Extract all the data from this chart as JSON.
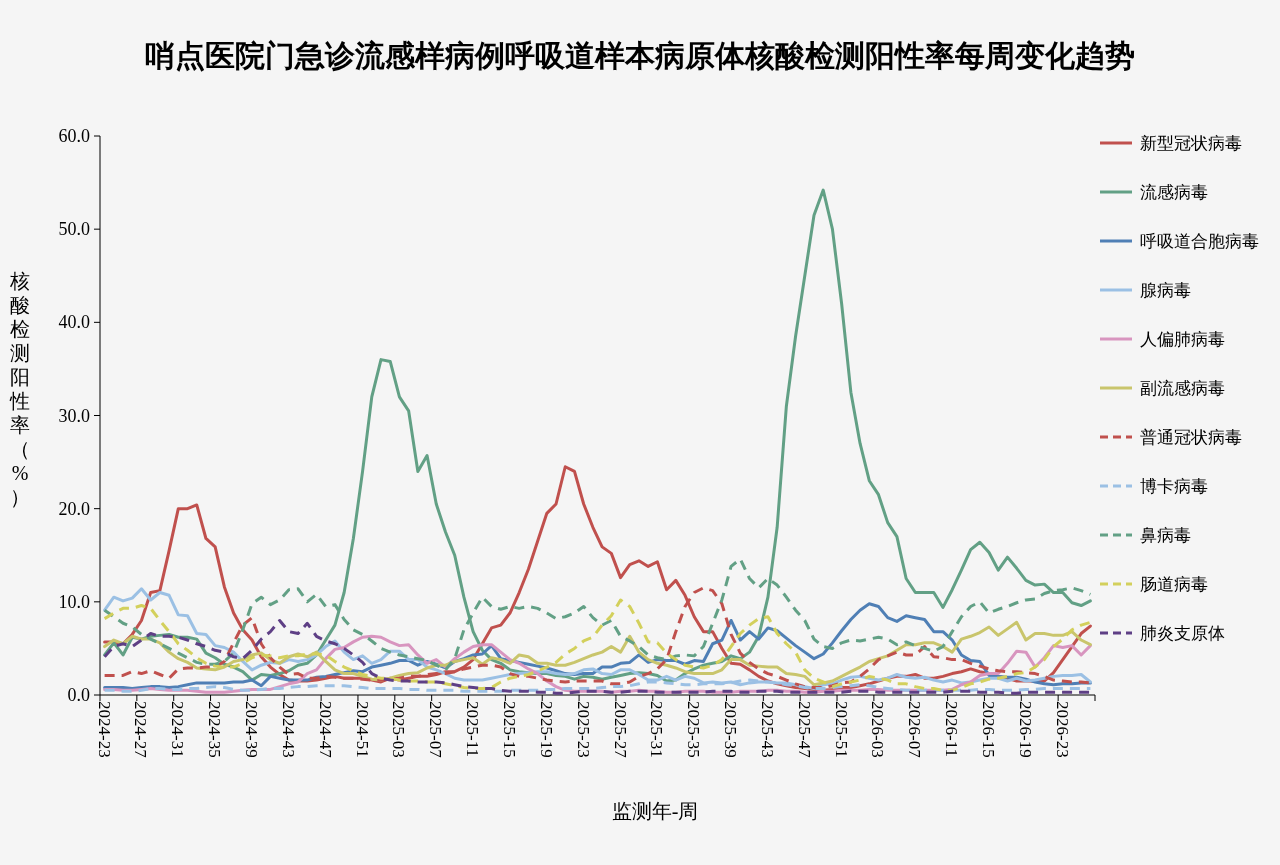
{
  "chart_data": {
    "type": "line",
    "title": "哨点医院门急诊流感样病例呼吸道样本病原体核酸检测阳性率每周变化趋势",
    "xlabel": "监测年-周",
    "ylabel": "核酸检测阳性率（%）",
    "categories": [
      "2024-23",
      null,
      null,
      null,
      "2024-27",
      null,
      null,
      null,
      "2024-31",
      null,
      null,
      null,
      "2024-35",
      null,
      null,
      null,
      "2024-39",
      null,
      null,
      null,
      "2024-43",
      null,
      null,
      null,
      "2024-47",
      null,
      null,
      null,
      "2024-51",
      null,
      null,
      null,
      "2025-03",
      null,
      null,
      null,
      "2025-07",
      null,
      null,
      null,
      "2025-11",
      null,
      null,
      null,
      "2025-15",
      null,
      null,
      null,
      "2025-19",
      null,
      null,
      null,
      "2025-23",
      null,
      null,
      null,
      "2025-27",
      null,
      null,
      null,
      "2025-31",
      null,
      null,
      null,
      "2025-35",
      null,
      null,
      null,
      "2025-39",
      null,
      null,
      null,
      "2025-43",
      null,
      null,
      null,
      "2025-47",
      null,
      null,
      null,
      "2025-51",
      null,
      null,
      null,
      "2026-03",
      null,
      null,
      null,
      "2026-07",
      null,
      null,
      null,
      "2026-11",
      null,
      null,
      null,
      "2026-15",
      null,
      null,
      null,
      "2026-19",
      null,
      null,
      null,
      "2026-23",
      null,
      null,
      null
    ],
    "series": [
      {
        "name": "新型冠状病毒",
        "color": "#c0504d",
        "line_style": "solid",
        "values": [
          5.7,
          5.7,
          5.5,
          6.5,
          8.0,
          11.0,
          11.2,
          15.5,
          20.0,
          20.0,
          20.4,
          16.8,
          15.9,
          11.6,
          8.8,
          7.0,
          5.9,
          4.1,
          3.0,
          2.2,
          1.6,
          1.5,
          1.5,
          1.6,
          1.8,
          2.0,
          1.8,
          1.8,
          1.8,
          1.6,
          1.4,
          1.8,
          1.6,
          1.8,
          2.0,
          2.0,
          2.2,
          2.5,
          2.5,
          3.0,
          3.8,
          5.5,
          7.2,
          7.5,
          8.8,
          11.0,
          13.5,
          16.5,
          19.5,
          20.5,
          24.5,
          24.0,
          20.5,
          18.0,
          15.9,
          15.2,
          12.6,
          14.0,
          14.4,
          13.8,
          14.3,
          11.3,
          12.3,
          10.7,
          8.4,
          6.8,
          6.8,
          5.0,
          3.4,
          3.3,
          2.7,
          2.0,
          1.5,
          1.2,
          1.0,
          0.8,
          0.7,
          0.6,
          0.5,
          0.6,
          0.8,
          0.8,
          1.0,
          1.2,
          1.5,
          1.8,
          2.0,
          2.0,
          2.2,
          1.8,
          1.8,
          2.0,
          2.3,
          2.5,
          2.8,
          2.5,
          2.3,
          2.0,
          1.8,
          1.5,
          1.5,
          1.5,
          1.5,
          2.4,
          3.8,
          5.2,
          6.6,
          7.4
        ]
      },
      {
        "name": "流感病毒",
        "color": "#62a085",
        "line_style": "solid",
        "values": [
          4.3,
          5.6,
          4.3,
          6.2,
          6.0,
          6.3,
          6.4,
          6.5,
          6.2,
          6.2,
          6.0,
          4.5,
          4.0,
          3.3,
          3.0,
          2.5,
          1.6,
          2.2,
          2.1,
          2.3,
          2.6,
          3.2,
          3.4,
          4.3,
          5.9,
          7.5,
          11.0,
          16.8,
          24.0,
          32.0,
          36.0,
          35.8,
          32.0,
          30.5,
          24.0,
          25.7,
          20.5,
          17.5,
          15.0,
          10.5,
          6.8,
          4.8,
          3.8,
          3.4,
          2.7,
          2.5,
          2.4,
          2.3,
          2.3,
          2.1,
          2.0,
          1.7,
          2.0,
          1.9,
          1.7,
          1.9,
          2.1,
          2.3,
          2.4,
          2.3,
          2.1,
          1.5,
          1.6,
          2.3,
          2.8,
          3.2,
          3.4,
          3.6,
          4.2,
          3.9,
          4.6,
          6.3,
          10.5,
          18.0,
          31.0,
          38.5,
          45.0,
          51.5,
          54.2,
          50.0,
          42.0,
          32.5,
          27.0,
          23.0,
          21.5,
          18.5,
          17.0,
          12.5,
          11.0,
          11.0,
          11.0,
          9.4,
          11.3,
          13.4,
          15.6,
          16.4,
          15.3,
          13.4,
          14.8,
          13.6,
          12.3,
          11.8,
          11.9,
          11.0,
          11.0,
          9.9,
          9.6,
          10.1
        ]
      },
      {
        "name": "呼吸道合胞病毒",
        "color": "#4f7fb5",
        "line_style": "solid",
        "values": [
          0.8,
          0.8,
          0.8,
          0.7,
          0.8,
          0.9,
          0.9,
          0.8,
          0.9,
          1.1,
          1.3,
          1.3,
          1.3,
          1.3,
          1.4,
          1.4,
          1.6,
          1.0,
          2.0,
          1.8,
          1.6,
          1.6,
          1.6,
          1.9,
          2.0,
          2.2,
          2.4,
          2.6,
          2.5,
          3.0,
          3.2,
          3.4,
          3.7,
          3.7,
          3.2,
          3.6,
          3.3,
          2.9,
          3.6,
          3.9,
          4.3,
          4.4,
          5.3,
          3.9,
          3.7,
          3.5,
          3.3,
          3.1,
          2.9,
          2.6,
          2.3,
          2.2,
          2.3,
          2.3,
          3.0,
          3.0,
          3.4,
          3.5,
          4.3,
          3.5,
          3.8,
          3.7,
          3.7,
          3.3,
          3.7,
          3.6,
          5.5,
          5.9,
          8.0,
          5.9,
          6.8,
          6.0,
          7.2,
          6.9,
          6.1,
          5.3,
          4.6,
          3.9,
          4.4,
          5.6,
          6.9,
          8.1,
          9.1,
          9.8,
          9.5,
          8.3,
          7.9,
          8.5,
          8.3,
          8.1,
          6.8,
          6.8,
          5.9,
          4.3,
          3.7,
          3.6,
          2.1,
          2.0,
          1.9,
          1.9,
          1.7,
          1.4,
          1.2,
          1.1,
          1.2,
          1.2,
          1.3,
          1.3
        ]
      },
      {
        "name": "腺病毒",
        "color": "#9bc0e4",
        "line_style": "solid",
        "values": [
          9.1,
          10.5,
          10.1,
          10.4,
          11.4,
          10.2,
          11.0,
          10.7,
          8.6,
          8.5,
          6.6,
          6.5,
          5.3,
          5.1,
          4.6,
          3.6,
          2.7,
          3.2,
          3.5,
          3.4,
          3.8,
          3.6,
          3.8,
          4.3,
          5.2,
          5.8,
          4.6,
          3.8,
          4.2,
          3.4,
          3.8,
          4.7,
          4.7,
          3.8,
          3.8,
          3.0,
          2.7,
          2.3,
          1.8,
          1.6,
          1.6,
          1.6,
          1.8,
          2.0,
          2.2,
          2.3,
          2.4,
          2.5,
          2.5,
          2.3,
          2.2,
          2.3,
          2.7,
          2.8,
          2.3,
          2.2,
          2.7,
          2.7,
          2.2,
          1.6,
          1.6,
          2.0,
          1.6,
          2.0,
          1.8,
          1.3,
          1.4,
          1.3,
          1.4,
          1.1,
          1.3,
          1.4,
          1.4,
          1.3,
          1.3,
          1.1,
          0.9,
          0.7,
          1.1,
          1.2,
          1.6,
          1.9,
          2.0,
          1.8,
          1.6,
          1.8,
          2.2,
          1.9,
          1.8,
          1.9,
          1.6,
          1.4,
          1.6,
          1.3,
          1.4,
          1.6,
          1.8,
          1.8,
          1.5,
          1.8,
          1.5,
          1.6,
          1.8,
          2.0,
          2.1,
          2.1,
          2.2,
          1.4
        ]
      },
      {
        "name": "人偏肺病毒",
        "color": "#d895bf",
        "line_style": "solid",
        "values": [
          0.6,
          0.6,
          0.5,
          0.5,
          0.6,
          0.7,
          0.6,
          0.5,
          0.5,
          0.5,
          0.4,
          0.3,
          0.3,
          0.3,
          0.4,
          0.5,
          0.6,
          0.6,
          0.6,
          0.9,
          1.2,
          1.4,
          2.3,
          2.7,
          3.9,
          4.9,
          5.1,
          5.7,
          6.2,
          6.3,
          6.2,
          5.7,
          5.3,
          5.4,
          4.3,
          3.4,
          3.8,
          3.0,
          3.9,
          4.6,
          5.2,
          5.4,
          5.4,
          4.6,
          3.8,
          3.4,
          2.8,
          2.3,
          1.5,
          0.9,
          0.5,
          0.4,
          0.4,
          0.4,
          0.4,
          0.3,
          0.4,
          0.4,
          0.5,
          0.4,
          0.4,
          0.3,
          0.3,
          0.4,
          0.4,
          0.4,
          0.3,
          0.3,
          0.3,
          0.4,
          0.4,
          0.4,
          0.5,
          0.5,
          0.4,
          0.4,
          0.3,
          0.3,
          0.4,
          0.4,
          0.5,
          0.5,
          0.5,
          0.6,
          0.6,
          0.5,
          0.5,
          0.5,
          0.5,
          0.5,
          0.5,
          0.5,
          0.6,
          1.1,
          1.4,
          2.1,
          2.3,
          2.3,
          3.4,
          4.7,
          4.6,
          3.0,
          4.0,
          5.3,
          5.1,
          5.3,
          4.3,
          5.3
        ]
      },
      {
        "name": "副流感病毒",
        "color": "#c9c56c",
        "line_style": "solid",
        "values": [
          5.2,
          5.9,
          5.5,
          6.3,
          6.0,
          6.0,
          5.6,
          4.6,
          3.9,
          3.5,
          2.9,
          2.8,
          2.7,
          3.0,
          3.6,
          3.8,
          4.3,
          4.5,
          3.8,
          3.4,
          4.1,
          4.4,
          4.1,
          4.6,
          3.6,
          2.7,
          2.3,
          2.3,
          2.0,
          1.7,
          1.6,
          1.8,
          2.1,
          2.3,
          2.4,
          2.9,
          3.2,
          3.2,
          3.6,
          3.8,
          4.0,
          3.3,
          4.0,
          3.8,
          3.4,
          4.3,
          4.1,
          3.4,
          3.4,
          3.2,
          3.2,
          3.5,
          3.9,
          4.3,
          4.6,
          5.2,
          4.6,
          6.3,
          4.6,
          3.8,
          3.4,
          3.2,
          2.9,
          2.5,
          2.3,
          2.3,
          2.3,
          2.7,
          3.8,
          3.8,
          3.2,
          3.1,
          3.0,
          3.0,
          2.3,
          2.2,
          2.0,
          1.1,
          1.3,
          1.5,
          2.0,
          2.5,
          3.0,
          3.6,
          3.9,
          4.2,
          4.8,
          5.4,
          5.4,
          5.6,
          5.6,
          5.2,
          4.6,
          6.0,
          6.3,
          6.7,
          7.3,
          6.4,
          7.1,
          7.8,
          5.9,
          6.6,
          6.6,
          6.4,
          6.4,
          6.8,
          5.9,
          5.4
        ]
      },
      {
        "name": "普通冠状病毒",
        "color": "#c0504d",
        "line_style": "dashed",
        "values": [
          2.1,
          2.1,
          2.1,
          2.5,
          2.3,
          2.6,
          2.2,
          1.8,
          2.8,
          2.9,
          2.9,
          3.0,
          3.0,
          3.6,
          5.6,
          7.5,
          8.3,
          5.5,
          4.0,
          3.0,
          2.2,
          2.3,
          1.8,
          1.8,
          2.0,
          1.9,
          1.8,
          1.8,
          1.7,
          1.6,
          1.6,
          1.7,
          1.8,
          2.0,
          2.0,
          2.2,
          2.3,
          2.3,
          2.5,
          2.8,
          3.0,
          3.2,
          3.2,
          3.0,
          2.3,
          2.0,
          2.0,
          1.8,
          1.6,
          1.5,
          1.4,
          1.5,
          1.5,
          1.5,
          1.5,
          1.2,
          1.2,
          1.4,
          2.0,
          2.3,
          2.8,
          3.8,
          6.8,
          9.5,
          11.0,
          11.5,
          11.2,
          9.8,
          6.5,
          4.5,
          3.5,
          2.8,
          2.3,
          2.0,
          1.6,
          1.2,
          0.9,
          0.8,
          0.8,
          1.0,
          1.3,
          1.4,
          2.0,
          2.8,
          3.8,
          4.2,
          4.6,
          4.3,
          4.3,
          5.2,
          4.1,
          4.0,
          3.8,
          3.8,
          3.4,
          3.1,
          2.8,
          2.6,
          2.5,
          2.5,
          2.4,
          2.3,
          2.0,
          1.6,
          1.5,
          1.4,
          1.4,
          1.3
        ]
      },
      {
        "name": "博卡病毒",
        "color": "#9bc0e4",
        "line_style": "dashed",
        "values": [
          0.5,
          0.5,
          0.4,
          0.4,
          0.5,
          0.7,
          0.7,
          0.6,
          0.6,
          0.7,
          0.7,
          0.8,
          0.9,
          0.8,
          0.6,
          0.5,
          0.5,
          0.6,
          0.7,
          0.7,
          0.8,
          0.9,
          0.9,
          1.0,
          1.0,
          1.0,
          1.0,
          0.9,
          0.8,
          0.7,
          0.7,
          0.7,
          0.7,
          0.6,
          0.6,
          0.5,
          0.5,
          0.5,
          0.5,
          0.4,
          0.4,
          0.4,
          0.4,
          0.4,
          0.5,
          0.5,
          0.5,
          0.5,
          0.6,
          0.6,
          0.7,
          0.7,
          0.7,
          0.7,
          0.8,
          0.9,
          0.9,
          1.0,
          1.2,
          1.4,
          1.4,
          1.3,
          1.2,
          1.1,
          1.1,
          1.2,
          1.2,
          1.2,
          1.3,
          1.5,
          1.6,
          1.5,
          1.4,
          1.3,
          1.1,
          1.0,
          0.8,
          0.7,
          0.7,
          0.8,
          0.9,
          1.0,
          1.1,
          1.0,
          0.8,
          0.7,
          0.6,
          0.5,
          0.5,
          0.5,
          0.5,
          0.5,
          0.5,
          0.5,
          0.5,
          0.6,
          0.6,
          0.5,
          0.5,
          0.5,
          0.6,
          0.6,
          0.7,
          0.7,
          0.7,
          0.7,
          0.7,
          0.7
        ]
      },
      {
        "name": "鼻病毒",
        "color": "#62a085",
        "line_style": "dashed",
        "values": [
          9.1,
          8.4,
          7.7,
          7.3,
          6.5,
          6.0,
          5.5,
          5.0,
          4.5,
          4.0,
          3.5,
          3.3,
          3.3,
          3.6,
          4.5,
          7.0,
          9.8,
          10.5,
          9.7,
          10.2,
          11.3,
          11.4,
          10.0,
          10.8,
          9.5,
          9.7,
          8.1,
          7.0,
          6.5,
          5.8,
          5.0,
          4.6,
          4.3,
          4.1,
          3.9,
          3.7,
          3.2,
          2.7,
          3.9,
          7.0,
          8.8,
          10.5,
          9.5,
          9.2,
          9.5,
          9.3,
          9.5,
          9.3,
          8.8,
          8.2,
          8.4,
          8.8,
          9.5,
          8.3,
          7.5,
          8.0,
          6.3,
          5.8,
          5.2,
          4.3,
          4.0,
          3.8,
          4.2,
          4.3,
          4.2,
          5.2,
          7.7,
          10.2,
          13.8,
          14.6,
          12.5,
          11.5,
          12.5,
          11.8,
          10.5,
          9.1,
          8.0,
          6.0,
          5.2,
          5.0,
          5.6,
          5.9,
          5.8,
          6.0,
          6.2,
          6.0,
          5.4,
          5.7,
          5.3,
          5.0,
          4.7,
          5.2,
          6.8,
          8.4,
          9.5,
          10.0,
          8.8,
          9.2,
          9.5,
          9.9,
          10.2,
          10.3,
          10.9,
          11.2,
          11.3,
          11.5,
          11.2,
          10.8
        ]
      },
      {
        "name": "肠道病毒",
        "color": "#d3d05c",
        "line_style": "dashed",
        "values": [
          8.2,
          8.8,
          9.3,
          9.3,
          9.6,
          9.3,
          8.0,
          6.8,
          5.5,
          4.8,
          4.0,
          3.4,
          3.1,
          3.0,
          3.0,
          3.4,
          4.0,
          4.3,
          4.2,
          4.0,
          4.2,
          4.2,
          4.4,
          4.4,
          4.3,
          3.6,
          3.0,
          2.6,
          2.2,
          2.0,
          1.8,
          1.8,
          1.6,
          1.5,
          1.5,
          1.4,
          1.4,
          1.2,
          1.0,
          0.8,
          0.7,
          0.7,
          0.8,
          1.4,
          1.8,
          2.0,
          2.2,
          2.6,
          3.0,
          3.5,
          4.4,
          5.0,
          5.8,
          6.2,
          7.5,
          8.5,
          10.2,
          9.5,
          7.7,
          5.7,
          5.6,
          4.5,
          3.8,
          3.2,
          3.0,
          2.9,
          3.2,
          3.8,
          5.2,
          6.6,
          7.5,
          8.2,
          8.4,
          6.6,
          5.5,
          4.6,
          2.7,
          1.8,
          1.4,
          0.9,
          1.2,
          1.4,
          1.6,
          2.0,
          1.8,
          1.6,
          1.2,
          1.2,
          0.9,
          0.7,
          0.7,
          0.5,
          0.5,
          0.8,
          1.2,
          1.4,
          1.7,
          1.8,
          2.0,
          2.3,
          2.4,
          3.0,
          3.8,
          5.2,
          6.0,
          7.0,
          7.5,
          7.8
        ]
      },
      {
        "name": "肺炎支原体",
        "color": "#5e3f85",
        "line_style": "dashed",
        "values": [
          4.1,
          5.2,
          5.5,
          5.2,
          5.9,
          6.6,
          6.3,
          6.3,
          6.2,
          5.9,
          5.5,
          5.2,
          4.8,
          4.6,
          4.1,
          3.9,
          4.8,
          6.0,
          6.8,
          8.0,
          6.8,
          6.6,
          7.7,
          6.3,
          5.8,
          5.5,
          5.0,
          4.3,
          3.5,
          2.3,
          1.8,
          1.6,
          1.5,
          1.5,
          1.4,
          1.4,
          1.4,
          1.3,
          1.1,
          0.9,
          0.8,
          0.7,
          0.7,
          0.5,
          0.4,
          0.4,
          0.4,
          0.3,
          0.3,
          0.2,
          0.2,
          0.3,
          0.4,
          0.4,
          0.4,
          0.3,
          0.3,
          0.4,
          0.4,
          0.4,
          0.3,
          0.3,
          0.3,
          0.3,
          0.3,
          0.3,
          0.4,
          0.4,
          0.4,
          0.3,
          0.3,
          0.4,
          0.4,
          0.4,
          0.3,
          0.3,
          0.3,
          0.3,
          0.3,
          0.3,
          0.3,
          0.4,
          0.4,
          0.4,
          0.3,
          0.3,
          0.3,
          0.3,
          0.3,
          0.3,
          0.3,
          0.3,
          0.4,
          0.4,
          0.4,
          0.3,
          0.3,
          0.3,
          0.2,
          0.2,
          0.3,
          0.3,
          0.3,
          0.3,
          0.3,
          0.3,
          0.3,
          0.3
        ]
      }
    ],
    "ylim": [
      0,
      60
    ],
    "yticks": [
      {
        "value": 0,
        "label": "0.0"
      },
      {
        "value": 10,
        "label": "10.0"
      },
      {
        "value": 20,
        "label": "20.0"
      },
      {
        "value": 30,
        "label": "30.0"
      },
      {
        "value": 40,
        "label": "40.0"
      },
      {
        "value": 50,
        "label": "50.0"
      },
      {
        "value": 60,
        "label": "60.0"
      }
    ],
    "legend": "right"
  }
}
